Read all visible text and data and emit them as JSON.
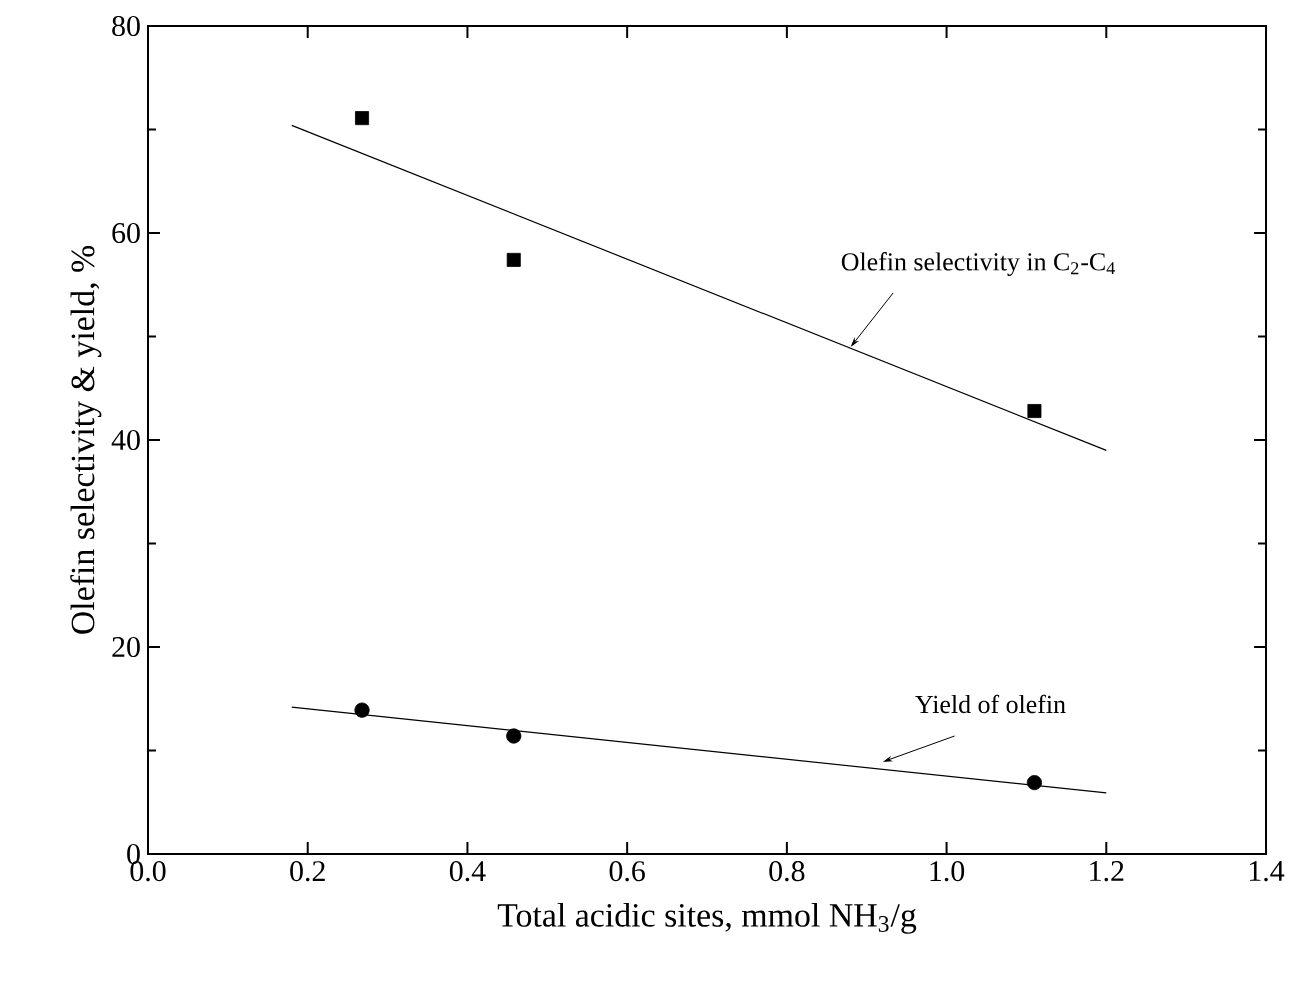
{
  "chart_data": {
    "type": "scatter",
    "xlabel": "Total acidic sites, mmol NH$_{3}$/g",
    "ylabel": "Olefin selectivity & yield, %",
    "xlim": [
      0.0,
      1.4
    ],
    "ylim": [
      0,
      80
    ],
    "xticks": [
      {
        "value": 0.0,
        "label": "0.0"
      },
      0.2,
      0.4,
      0.6,
      0.8,
      {
        "value": 1.0,
        "label": "1.0"
      },
      1.2,
      1.4
    ],
    "yticks": [
      {
        "value": 0,
        "label": "0"
      },
      {
        "value": 20,
        "label": "20"
      },
      {
        "value": 40,
        "label": "40"
      },
      {
        "value": 60,
        "label": "60"
      },
      {
        "value": 80,
        "label": "80"
      }
    ],
    "grid": false,
    "series": [
      {
        "marker": "square",
        "color": "#000000",
        "x": [
          0.268,
          0.458,
          1.11
        ],
        "values": [
          71.1,
          57.4,
          42.8
        ]
      },
      {
        "type": "line",
        "marker": "none",
        "line_style": "solid",
        "color": "#000000",
        "x": [
          0.18,
          1.2
        ],
        "values": [
          70.4,
          39.0
        ]
      },
      {
        "marker": "circle",
        "color": "#000000",
        "x": [
          0.268,
          0.458,
          1.11
        ],
        "values": [
          13.9,
          11.4,
          6.9
        ]
      },
      {
        "type": "line",
        "marker": "none",
        "line_style": "solid",
        "color": "#000000",
        "x": [
          0.18,
          1.2
        ],
        "values": [
          14.2,
          5.9
        ]
      }
    ],
    "annotations": [
      {
        "text": "Olefin selectivity in C$_{2}$-C$_{4}$",
        "x": 0.88,
        "y": 49
      },
      {
        "text": "Yield of olefin",
        "x": 0.92,
        "y": 8.9
      }
    ]
  }
}
